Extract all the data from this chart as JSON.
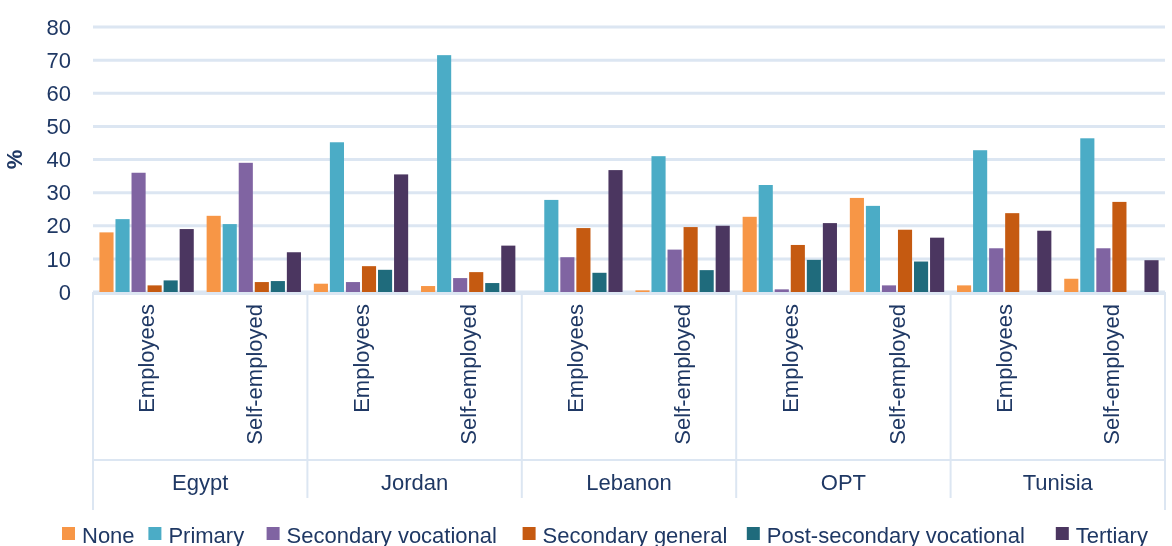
{
  "chart_data": {
    "type": "bar",
    "ylabel": "%",
    "categories": [
      "Employees",
      "Self-employed",
      "Employees",
      "Self-employed",
      "Employees",
      "Self-employed",
      "Employees",
      "Self-employed",
      "Employees",
      "Self-employed"
    ],
    "annotations": [
      "Egypt",
      "Jordan",
      "Lebanon",
      "OPT",
      "Tunisia"
    ],
    "series": [
      {
        "name": "None",
        "color": "#f79646",
        "values": [
          18,
          23,
          2.5,
          1.8,
          0,
          0.5,
          22.7,
          28.4,
          2,
          4
        ]
      },
      {
        "name": "Primary",
        "color": "#4bacc6",
        "values": [
          22,
          20.5,
          45.2,
          71.5,
          27.8,
          41,
          32.3,
          26,
          42.8,
          46.4
        ]
      },
      {
        "name": "Secondary vocational",
        "color": "#8064a2",
        "values": [
          36,
          39,
          3,
          4.2,
          10.5,
          12.8,
          0.8,
          2,
          13.2,
          13.2
        ]
      },
      {
        "name": "Secondary general",
        "color": "#c55a11",
        "values": [
          2,
          3,
          7.8,
          6,
          19.3,
          19.6,
          14.2,
          18.8,
          23.8,
          27.2
        ]
      },
      {
        "name": "Post-secondary vocational",
        "color": "#1f6b7c",
        "values": [
          3.5,
          3.3,
          6.7,
          2.7,
          5.8,
          6.6,
          9.7,
          9.2,
          0,
          0
        ]
      },
      {
        "name": "Tertiary",
        "color": "#4b3660",
        "values": [
          19,
          12,
          35.5,
          14,
          36.8,
          20,
          20.8,
          16.4,
          18.5,
          9.6
        ]
      }
    ],
    "ylim": [
      0,
      80
    ],
    "yticks": [
      0,
      10,
      20,
      30,
      40,
      50,
      60,
      70,
      80
    ],
    "grid": "y",
    "legend": "bottom"
  }
}
